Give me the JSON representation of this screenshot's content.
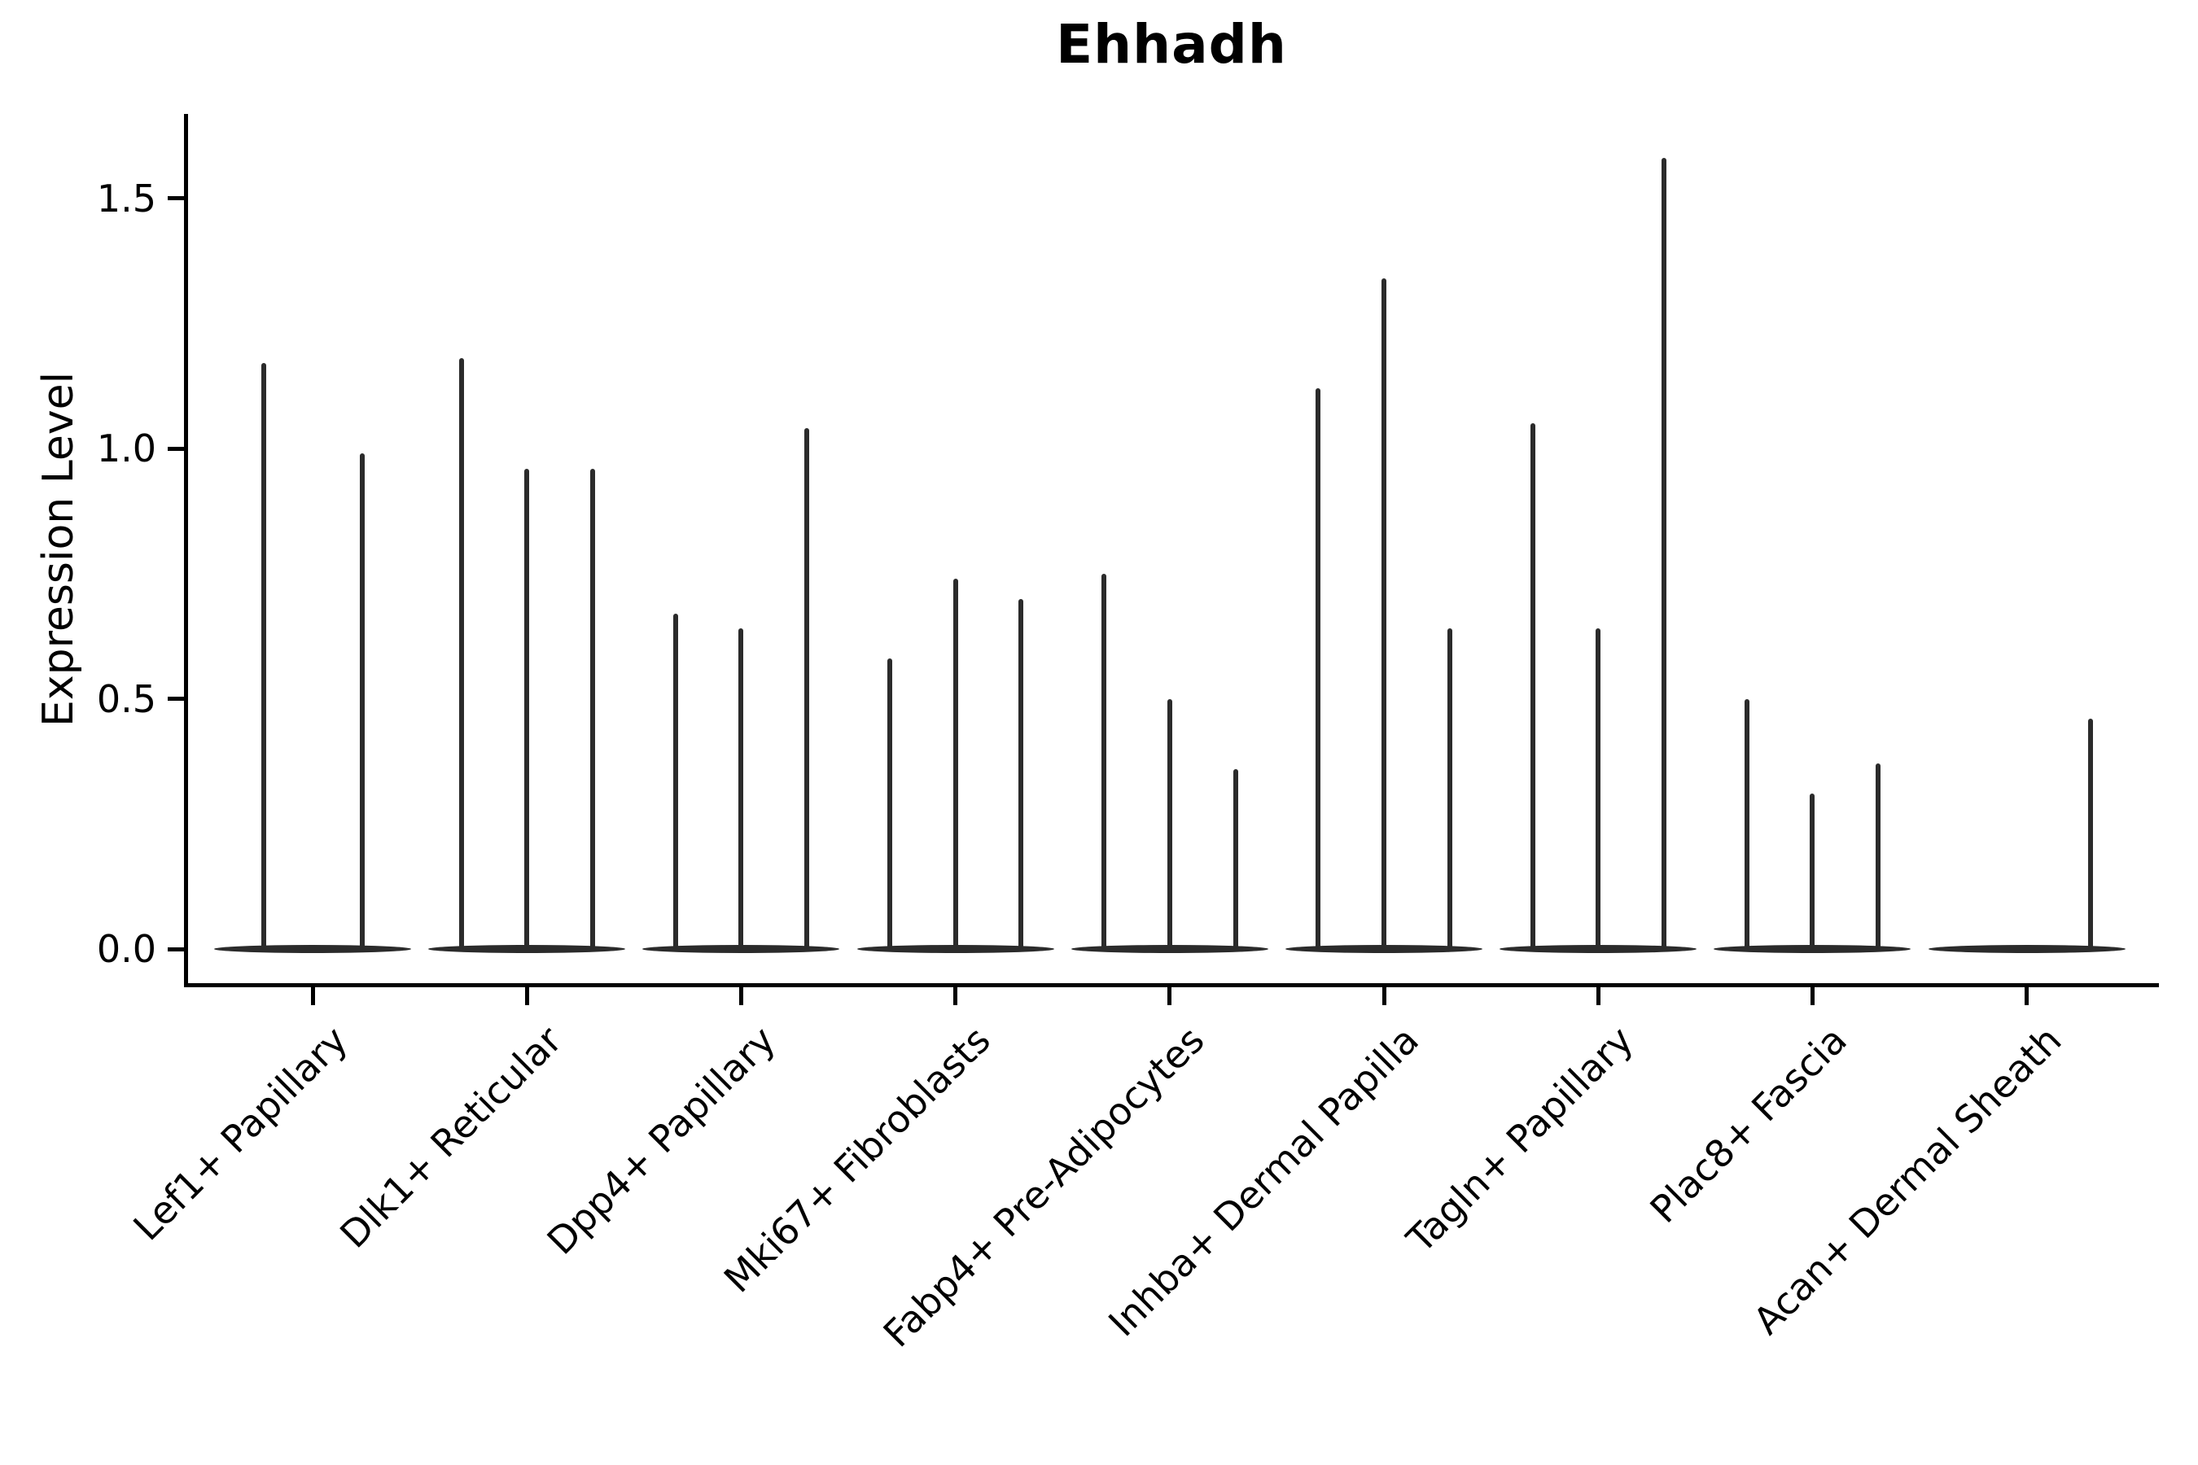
{
  "title": "Ehhadh",
  "axes": {
    "ylabel": "Expression Level",
    "ytick_labels": [
      "0.0",
      "0.5",
      "1.0",
      "1.5"
    ],
    "ytick_values": [
      0.0,
      0.5,
      1.0,
      1.5
    ]
  },
  "colors": {
    "violin": "#2b2b2b",
    "axis": "#000000",
    "text": "#000000",
    "background": "#ffffff"
  },
  "chart_data": {
    "type": "violin",
    "title": "Ehhadh",
    "xlabel": "",
    "ylabel": "Expression Level",
    "ylim": [
      0,
      1.66
    ],
    "yticks": [
      0.0,
      0.5,
      1.0,
      1.5
    ],
    "grid": false,
    "legend": "none",
    "style_note": "collapsed violins: flat base lens at 0 with thin vertical density spikes; max expression per spike listed below",
    "categories": [
      "Lef1+ Papillary",
      "Dlk1+ Reticular",
      "Dpp4+ Papillary",
      "Mki67+ Fibroblasts",
      "Fabp4+ Pre-Adipocytes",
      "Inhba+ Dermal Papilla",
      "Tagln+ Papillary",
      "Plac8+ Fascia",
      "Acan+ Dermal Sheath"
    ],
    "series": [
      {
        "category": "Lef1+ Papillary",
        "spikes": [
          {
            "offset": -60.5,
            "value": 1.17
          },
          {
            "offset": 60.5,
            "value": 0.99
          }
        ]
      },
      {
        "category": "Dlk1+ Reticular",
        "spikes": [
          {
            "offset": -80.7,
            "value": 1.18
          },
          {
            "offset": 0,
            "value": 0.96
          },
          {
            "offset": 80.7,
            "value": 0.96
          }
        ]
      },
      {
        "category": "Dpp4+ Papillary",
        "spikes": [
          {
            "offset": -80.7,
            "value": 0.67
          },
          {
            "offset": 0,
            "value": 0.64
          },
          {
            "offset": 80.7,
            "value": 1.04
          }
        ]
      },
      {
        "category": "Mki67+ Fibroblasts",
        "spikes": [
          {
            "offset": -80.7,
            "value": 0.58
          },
          {
            "offset": 0,
            "value": 0.74
          },
          {
            "offset": 80.7,
            "value": 0.7
          }
        ]
      },
      {
        "category": "Fabp4+ Pre-Adipocytes",
        "spikes": [
          {
            "offset": -80.7,
            "value": 0.75
          },
          {
            "offset": 0,
            "value": 0.5
          },
          {
            "offset": 80.7,
            "value": 0.36
          }
        ]
      },
      {
        "category": "Inhba+ Dermal Papilla",
        "spikes": [
          {
            "offset": -80.7,
            "value": 1.12
          },
          {
            "offset": 0,
            "value": 1.34
          },
          {
            "offset": 80.7,
            "value": 0.64
          }
        ]
      },
      {
        "category": "Tagln+ Papillary",
        "spikes": [
          {
            "offset": -80.7,
            "value": 1.05
          },
          {
            "offset": 0,
            "value": 0.64
          },
          {
            "offset": 80.7,
            "value": 1.58
          }
        ]
      },
      {
        "category": "Plac8+ Fascia",
        "spikes": [
          {
            "offset": -80.7,
            "value": 0.5
          },
          {
            "offset": 0,
            "value": 0.31
          },
          {
            "offset": 80.7,
            "value": 0.37
          }
        ]
      },
      {
        "category": "Acan+ Dermal Sheath",
        "spikes": [
          {
            "offset": 78.0,
            "value": 0.46
          }
        ]
      }
    ]
  }
}
